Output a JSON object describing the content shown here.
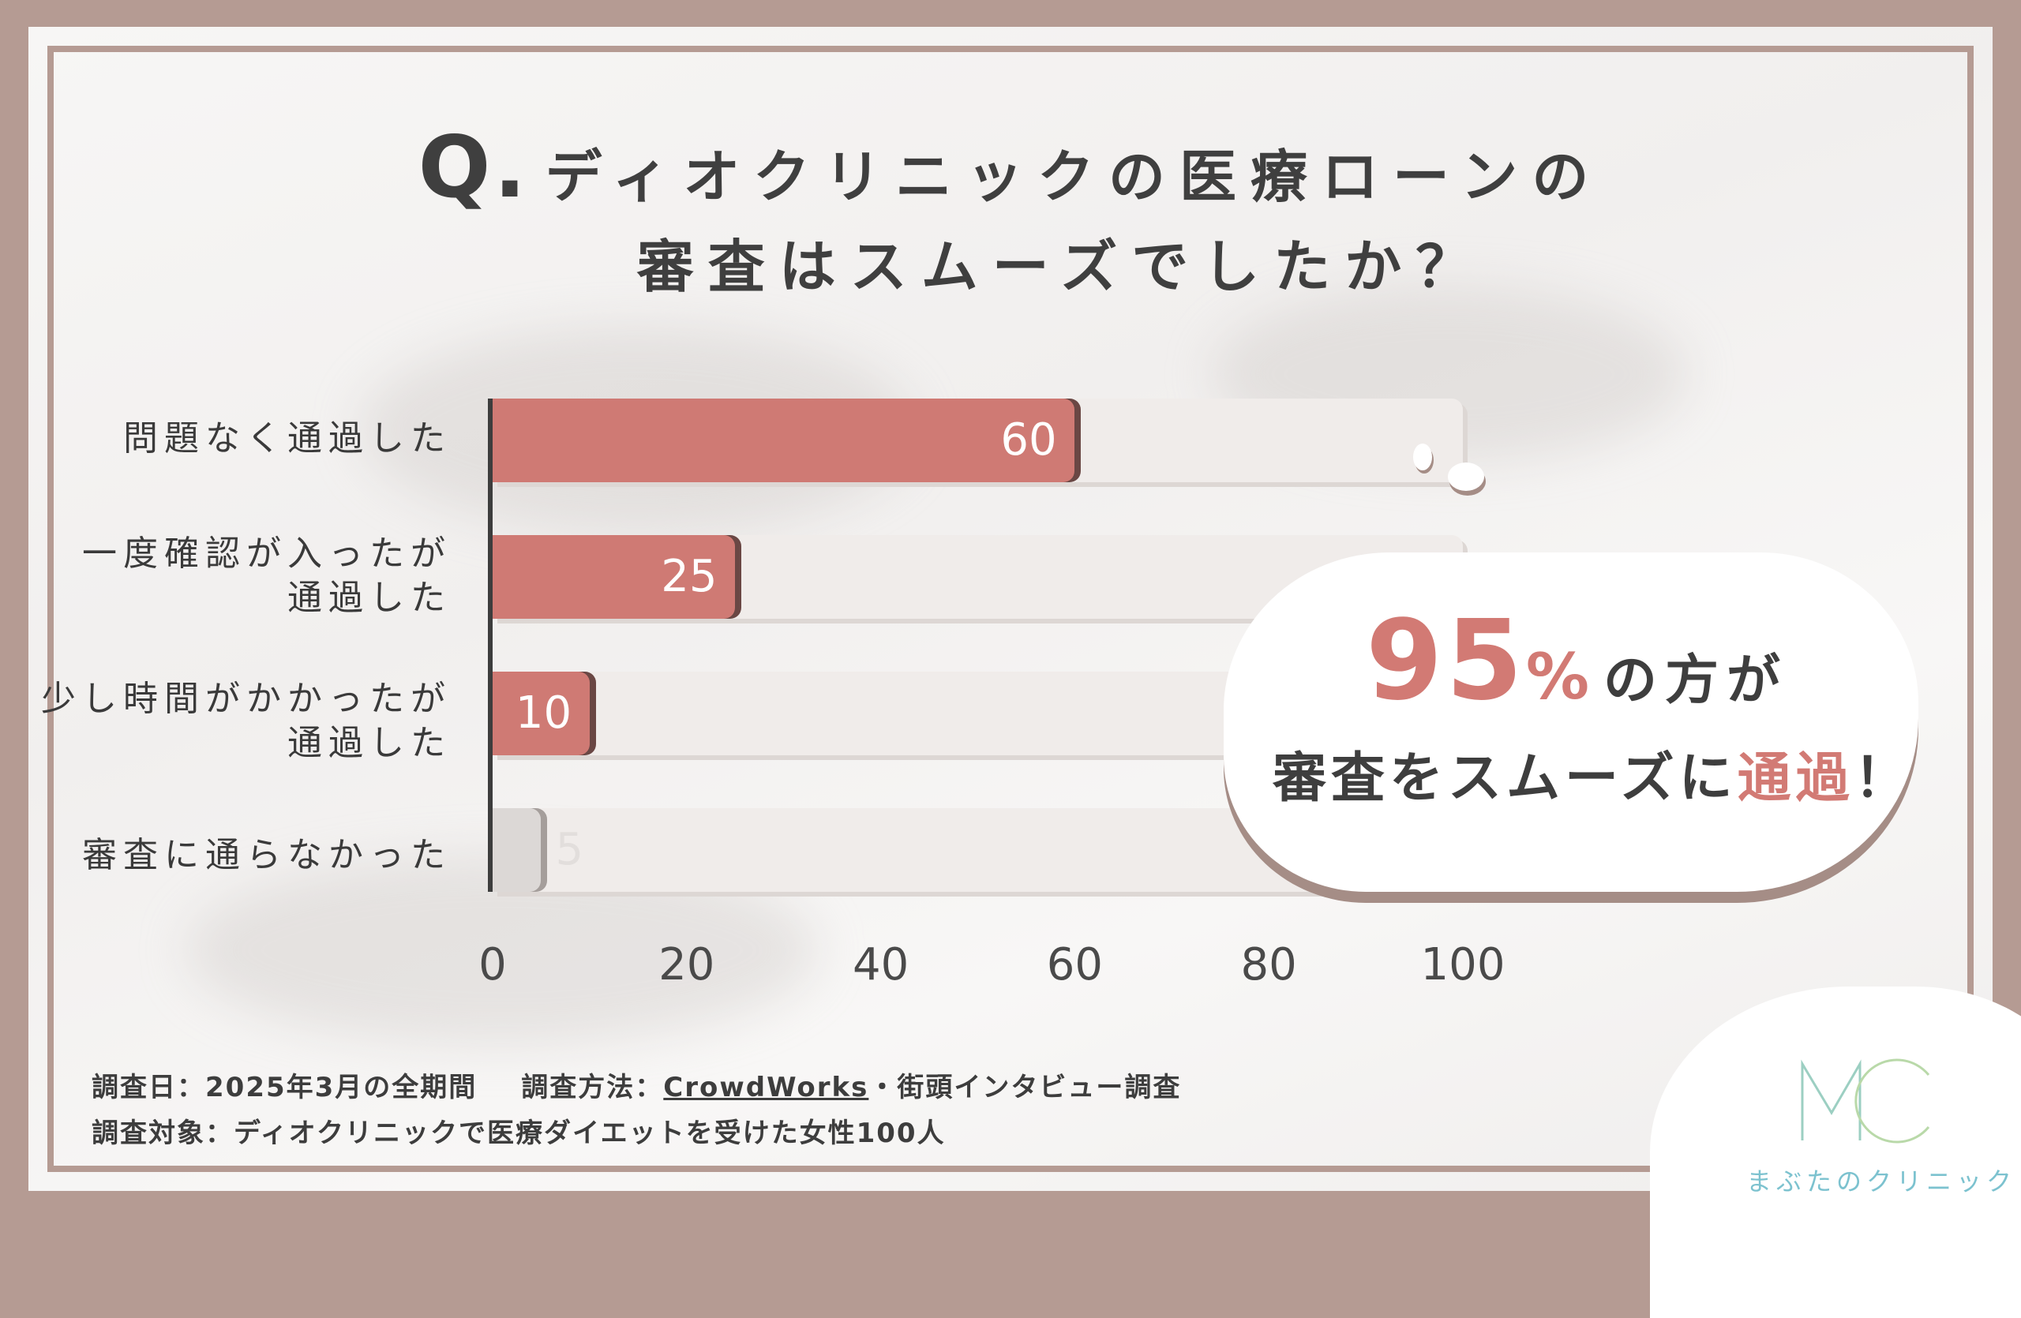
{
  "title": {
    "prefix": "Q.",
    "line1": "ディオクリニックの医療ローンの",
    "line2": "審査はスムーズでしたか？"
  },
  "chart_data": {
    "type": "bar",
    "orientation": "horizontal",
    "categories": [
      "問題なく通過した",
      "一度確認が入ったが通過した",
      "少し時間がかかったが通過した",
      "審査に通らなかった"
    ],
    "values": [
      60,
      25,
      10,
      5
    ],
    "xlim": [
      0,
      100
    ],
    "xticks": [
      0,
      20,
      40,
      60,
      80,
      100
    ],
    "colors": {
      "bar": "#cf7a74",
      "bar_muted": "#dcd8d6",
      "track": "#f0ecea"
    }
  },
  "labels": [
    {
      "line1": "問題なく通過した",
      "line2": ""
    },
    {
      "line1": "一度確認が入ったが",
      "line2": "通過した"
    },
    {
      "line1": "少し時間がかかったが",
      "line2": "通過した"
    },
    {
      "line1": "審査に通らなかった",
      "line2": ""
    }
  ],
  "callout": {
    "big": "95",
    "percent": "%",
    "rest": "の方が",
    "line2_pre": "審査をスムーズに",
    "line2_accent": "通過",
    "line2_post": "！"
  },
  "footer": {
    "date": "調査日：2025年3月の全期間",
    "method_label": "調査方法：",
    "method_link": "CrowdWorks",
    "method_rest": "・街頭インタビュー調査",
    "target": "調査対象：ディオクリニックで医療ダイエットを受けた女性100人"
  },
  "logo": {
    "mark": "MC",
    "text": "まぶたのクリニック",
    "color": "#7cc2cf"
  }
}
